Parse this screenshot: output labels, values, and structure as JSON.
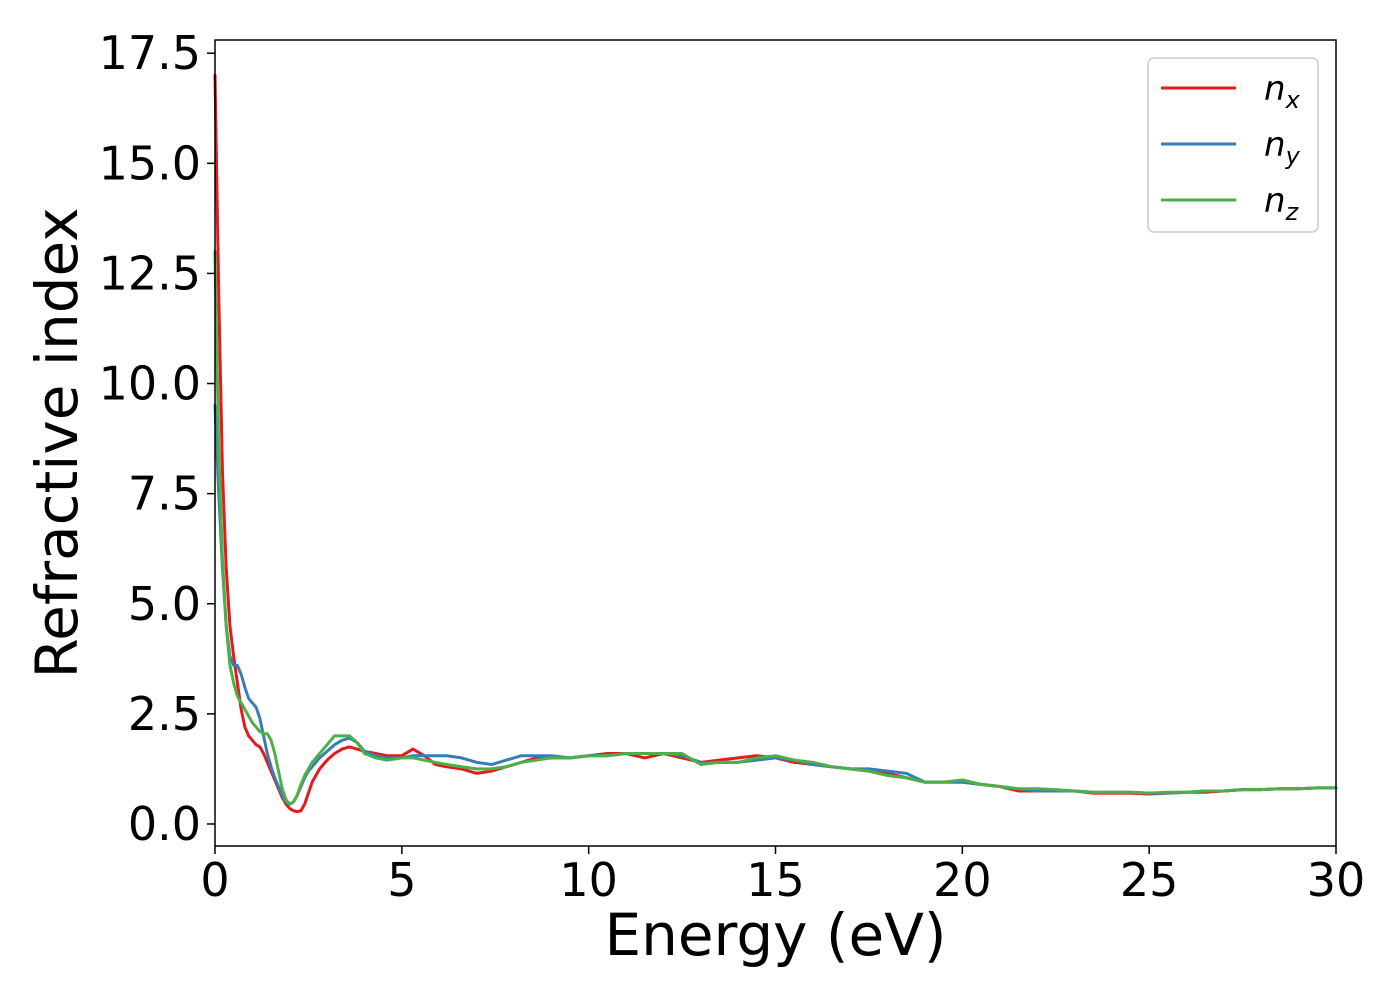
{
  "chart_data": {
    "type": "line",
    "title": "",
    "xlabel": "Energy (eV)",
    "ylabel": "Refractive index",
    "xlim": [
      0,
      30
    ],
    "ylim": [
      -0.5,
      17.8
    ],
    "xticks": [
      0,
      5,
      10,
      15,
      20,
      25,
      30
    ],
    "xtick_labels": [
      "0",
      "5",
      "10",
      "15",
      "20",
      "25",
      "30"
    ],
    "yticks": [
      0,
      2.5,
      5,
      7.5,
      10,
      12.5,
      15,
      17.5
    ],
    "ytick_labels": [
      "0.0",
      "2.5",
      "5.0",
      "7.5",
      "10.0",
      "12.5",
      "15.0",
      "17.5"
    ],
    "grid": false,
    "legend_position": "top-right",
    "series": [
      {
        "name": "n_x",
        "label_main": "n",
        "label_sub": "x",
        "color": "#e41a1c",
        "x": [
          0,
          0.1,
          0.2,
          0.3,
          0.4,
          0.5,
          0.6,
          0.7,
          0.8,
          0.9,
          1.0,
          1.1,
          1.2,
          1.3,
          1.4,
          1.5,
          1.6,
          1.7,
          1.8,
          1.9,
          2.0,
          2.1,
          2.2,
          2.3,
          2.4,
          2.5,
          2.6,
          2.7,
          2.8,
          3.0,
          3.2,
          3.4,
          3.6,
          3.8,
          4.0,
          4.3,
          4.6,
          5.0,
          5.3,
          5.6,
          5.9,
          6.2,
          6.6,
          7.0,
          7.4,
          7.8,
          8.2,
          8.6,
          9.0,
          9.5,
          10.0,
          10.5,
          11.0,
          11.5,
          12.0,
          12.5,
          13.0,
          13.5,
          14.0,
          14.5,
          15.0,
          15.5,
          16.0,
          16.5,
          17.0,
          17.5,
          18.0,
          18.5,
          19.0,
          19.5,
          20.0,
          20.5,
          21.0,
          21.5,
          22.0,
          22.5,
          23.0,
          23.5,
          24.0,
          24.5,
          25.0,
          25.5,
          26.0,
          26.5,
          27.0,
          27.5,
          28.0,
          28.5,
          29.0,
          29.5,
          30.0
        ],
        "values": [
          17.0,
          12.0,
          8.0,
          5.8,
          4.5,
          3.8,
          3.2,
          2.6,
          2.2,
          2.0,
          1.9,
          1.8,
          1.75,
          1.6,
          1.4,
          1.2,
          1.0,
          0.8,
          0.6,
          0.45,
          0.35,
          0.3,
          0.28,
          0.3,
          0.45,
          0.7,
          0.95,
          1.1,
          1.25,
          1.45,
          1.6,
          1.7,
          1.75,
          1.7,
          1.65,
          1.6,
          1.55,
          1.55,
          1.7,
          1.55,
          1.35,
          1.3,
          1.25,
          1.15,
          1.2,
          1.3,
          1.4,
          1.5,
          1.5,
          1.5,
          1.55,
          1.6,
          1.6,
          1.5,
          1.6,
          1.5,
          1.4,
          1.45,
          1.5,
          1.55,
          1.5,
          1.4,
          1.35,
          1.3,
          1.25,
          1.2,
          1.15,
          1.05,
          0.95,
          0.95,
          0.95,
          0.9,
          0.85,
          0.75,
          0.75,
          0.75,
          0.75,
          0.7,
          0.7,
          0.7,
          0.68,
          0.7,
          0.72,
          0.72,
          0.75,
          0.78,
          0.78,
          0.8,
          0.8,
          0.82,
          0.82
        ]
      },
      {
        "name": "n_y",
        "label_main": "n",
        "label_sub": "y",
        "color": "#377eb8",
        "x": [
          0,
          0.1,
          0.2,
          0.3,
          0.4,
          0.5,
          0.6,
          0.7,
          0.8,
          0.9,
          1.0,
          1.1,
          1.2,
          1.3,
          1.4,
          1.5,
          1.6,
          1.7,
          1.8,
          1.9,
          2.0,
          2.1,
          2.2,
          2.3,
          2.4,
          2.5,
          2.6,
          2.7,
          2.8,
          3.0,
          3.2,
          3.4,
          3.6,
          3.8,
          4.0,
          4.3,
          4.6,
          5.0,
          5.3,
          5.6,
          5.9,
          6.2,
          6.6,
          7.0,
          7.4,
          7.8,
          8.2,
          8.6,
          9.0,
          9.5,
          10.0,
          10.5,
          11.0,
          11.5,
          12.0,
          12.5,
          13.0,
          13.5,
          14.0,
          14.5,
          15.0,
          15.5,
          16.0,
          16.5,
          17.0,
          17.5,
          18.0,
          18.5,
          19.0,
          19.5,
          20.0,
          20.5,
          21.0,
          21.5,
          22.0,
          22.5,
          23.0,
          23.5,
          24.0,
          24.5,
          25.0,
          25.5,
          26.0,
          26.5,
          27.0,
          27.5,
          28.0,
          28.5,
          29.0,
          29.5,
          30.0
        ],
        "values": [
          9.5,
          7.5,
          5.8,
          4.5,
          3.8,
          3.6,
          3.6,
          3.4,
          3.1,
          2.85,
          2.75,
          2.65,
          2.4,
          2.0,
          1.6,
          1.3,
          1.05,
          0.85,
          0.65,
          0.5,
          0.45,
          0.5,
          0.65,
          0.85,
          1.05,
          1.2,
          1.3,
          1.4,
          1.5,
          1.65,
          1.8,
          1.9,
          1.95,
          1.85,
          1.65,
          1.55,
          1.5,
          1.5,
          1.55,
          1.55,
          1.55,
          1.55,
          1.5,
          1.4,
          1.35,
          1.45,
          1.55,
          1.55,
          1.55,
          1.5,
          1.55,
          1.55,
          1.6,
          1.6,
          1.6,
          1.55,
          1.4,
          1.4,
          1.4,
          1.45,
          1.5,
          1.45,
          1.35,
          1.3,
          1.25,
          1.25,
          1.2,
          1.15,
          0.95,
          0.95,
          0.95,
          0.9,
          0.85,
          0.8,
          0.75,
          0.75,
          0.75,
          0.72,
          0.72,
          0.72,
          0.7,
          0.7,
          0.72,
          0.75,
          0.75,
          0.78,
          0.78,
          0.8,
          0.8,
          0.82,
          0.82
        ]
      },
      {
        "name": "n_z",
        "label_main": "n",
        "label_sub": "z",
        "color": "#4daf4a",
        "x": [
          0,
          0.1,
          0.2,
          0.3,
          0.4,
          0.5,
          0.6,
          0.7,
          0.8,
          0.9,
          1.0,
          1.1,
          1.2,
          1.3,
          1.4,
          1.5,
          1.6,
          1.7,
          1.8,
          1.9,
          2.0,
          2.1,
          2.2,
          2.3,
          2.4,
          2.5,
          2.6,
          2.7,
          2.8,
          3.0,
          3.2,
          3.4,
          3.6,
          3.8,
          4.0,
          4.3,
          4.6,
          5.0,
          5.3,
          5.6,
          5.9,
          6.2,
          6.6,
          7.0,
          7.4,
          7.8,
          8.2,
          8.6,
          9.0,
          9.5,
          10.0,
          10.5,
          11.0,
          11.5,
          12.0,
          12.5,
          13.0,
          13.5,
          14.0,
          14.5,
          15.0,
          15.5,
          16.0,
          16.5,
          17.0,
          17.5,
          18.0,
          18.5,
          19.0,
          19.5,
          20.0,
          20.5,
          21.0,
          21.5,
          22.0,
          22.5,
          23.0,
          23.5,
          24.0,
          24.5,
          25.0,
          25.5,
          26.0,
          26.5,
          27.0,
          27.5,
          28.0,
          28.5,
          29.0,
          29.5,
          30.0
        ],
        "values": [
          13.0,
          8.5,
          6.0,
          4.5,
          3.6,
          3.2,
          2.9,
          2.75,
          2.6,
          2.45,
          2.3,
          2.2,
          2.1,
          2.05,
          2.05,
          1.9,
          1.6,
          1.2,
          0.8,
          0.55,
          0.45,
          0.5,
          0.65,
          0.9,
          1.1,
          1.25,
          1.4,
          1.5,
          1.6,
          1.8,
          2.0,
          2.0,
          2.0,
          1.85,
          1.6,
          1.5,
          1.45,
          1.5,
          1.5,
          1.45,
          1.4,
          1.35,
          1.3,
          1.25,
          1.25,
          1.3,
          1.4,
          1.45,
          1.5,
          1.5,
          1.55,
          1.55,
          1.6,
          1.6,
          1.6,
          1.6,
          1.35,
          1.4,
          1.4,
          1.5,
          1.55,
          1.45,
          1.4,
          1.3,
          1.25,
          1.2,
          1.1,
          1.05,
          0.95,
          0.95,
          1.0,
          0.9,
          0.85,
          0.8,
          0.8,
          0.78,
          0.75,
          0.72,
          0.72,
          0.72,
          0.7,
          0.72,
          0.72,
          0.75,
          0.75,
          0.78,
          0.78,
          0.8,
          0.8,
          0.82,
          0.82
        ]
      }
    ]
  }
}
